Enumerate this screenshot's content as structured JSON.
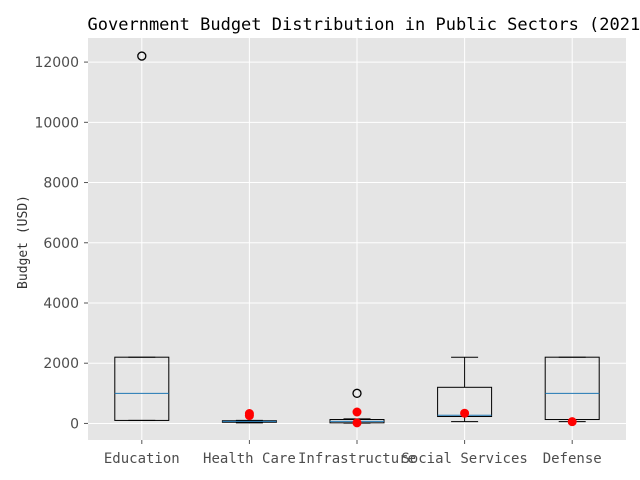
{
  "chart_data": {
    "type": "boxplot",
    "title": "Government Budget Distribution in Public Sectors (2021)",
    "xlabel": "",
    "ylabel": "Budget (USD)",
    "ylim": [
      -550,
      12800
    ],
    "yticks": [
      0,
      2000,
      4000,
      6000,
      8000,
      10000,
      12000
    ],
    "ytick_labels": [
      "0",
      "2000",
      "4000",
      "6000",
      "8000",
      "10000",
      "12000"
    ],
    "grid": true,
    "categories": [
      "Education",
      "Health Care",
      "Infrastructure",
      "Social Services",
      "Defense"
    ],
    "boxes": [
      {
        "name": "Education",
        "whisker_low": 100,
        "q1": 100,
        "median": 1000,
        "q3": 2200,
        "whisker_high": 2200,
        "outliers": [
          12200
        ]
      },
      {
        "name": "Health Care",
        "whisker_low": 20,
        "q1": 40,
        "median": 70,
        "q3": 90,
        "whisker_high": 100,
        "outliers": []
      },
      {
        "name": "Infrastructure",
        "whisker_low": 10,
        "q1": 20,
        "median": 70,
        "q3": 130,
        "whisker_high": 150,
        "outliers": [
          1000
        ]
      },
      {
        "name": "Social Services",
        "whisker_low": 60,
        "q1": 230,
        "median": 270,
        "q3": 1200,
        "whisker_high": 2200,
        "outliers": []
      },
      {
        "name": "Defense",
        "whisker_low": 60,
        "q1": 130,
        "median": 1000,
        "q3": 2200,
        "whisker_high": 2200,
        "outliers": []
      }
    ],
    "highlight_points": [
      {
        "category": "Health Care",
        "values": [
          260,
          330
        ]
      },
      {
        "category": "Infrastructure",
        "values": [
          20,
          380
        ]
      },
      {
        "category": "Social Services",
        "values": [
          340
        ]
      },
      {
        "category": "Defense",
        "values": [
          60
        ]
      }
    ],
    "colors": {
      "background": "#e5e5e5",
      "grid": "#ffffff",
      "box": "#000000",
      "median": "#1f77b4",
      "highlight": "#ff0000",
      "outlier": "#000000"
    }
  }
}
